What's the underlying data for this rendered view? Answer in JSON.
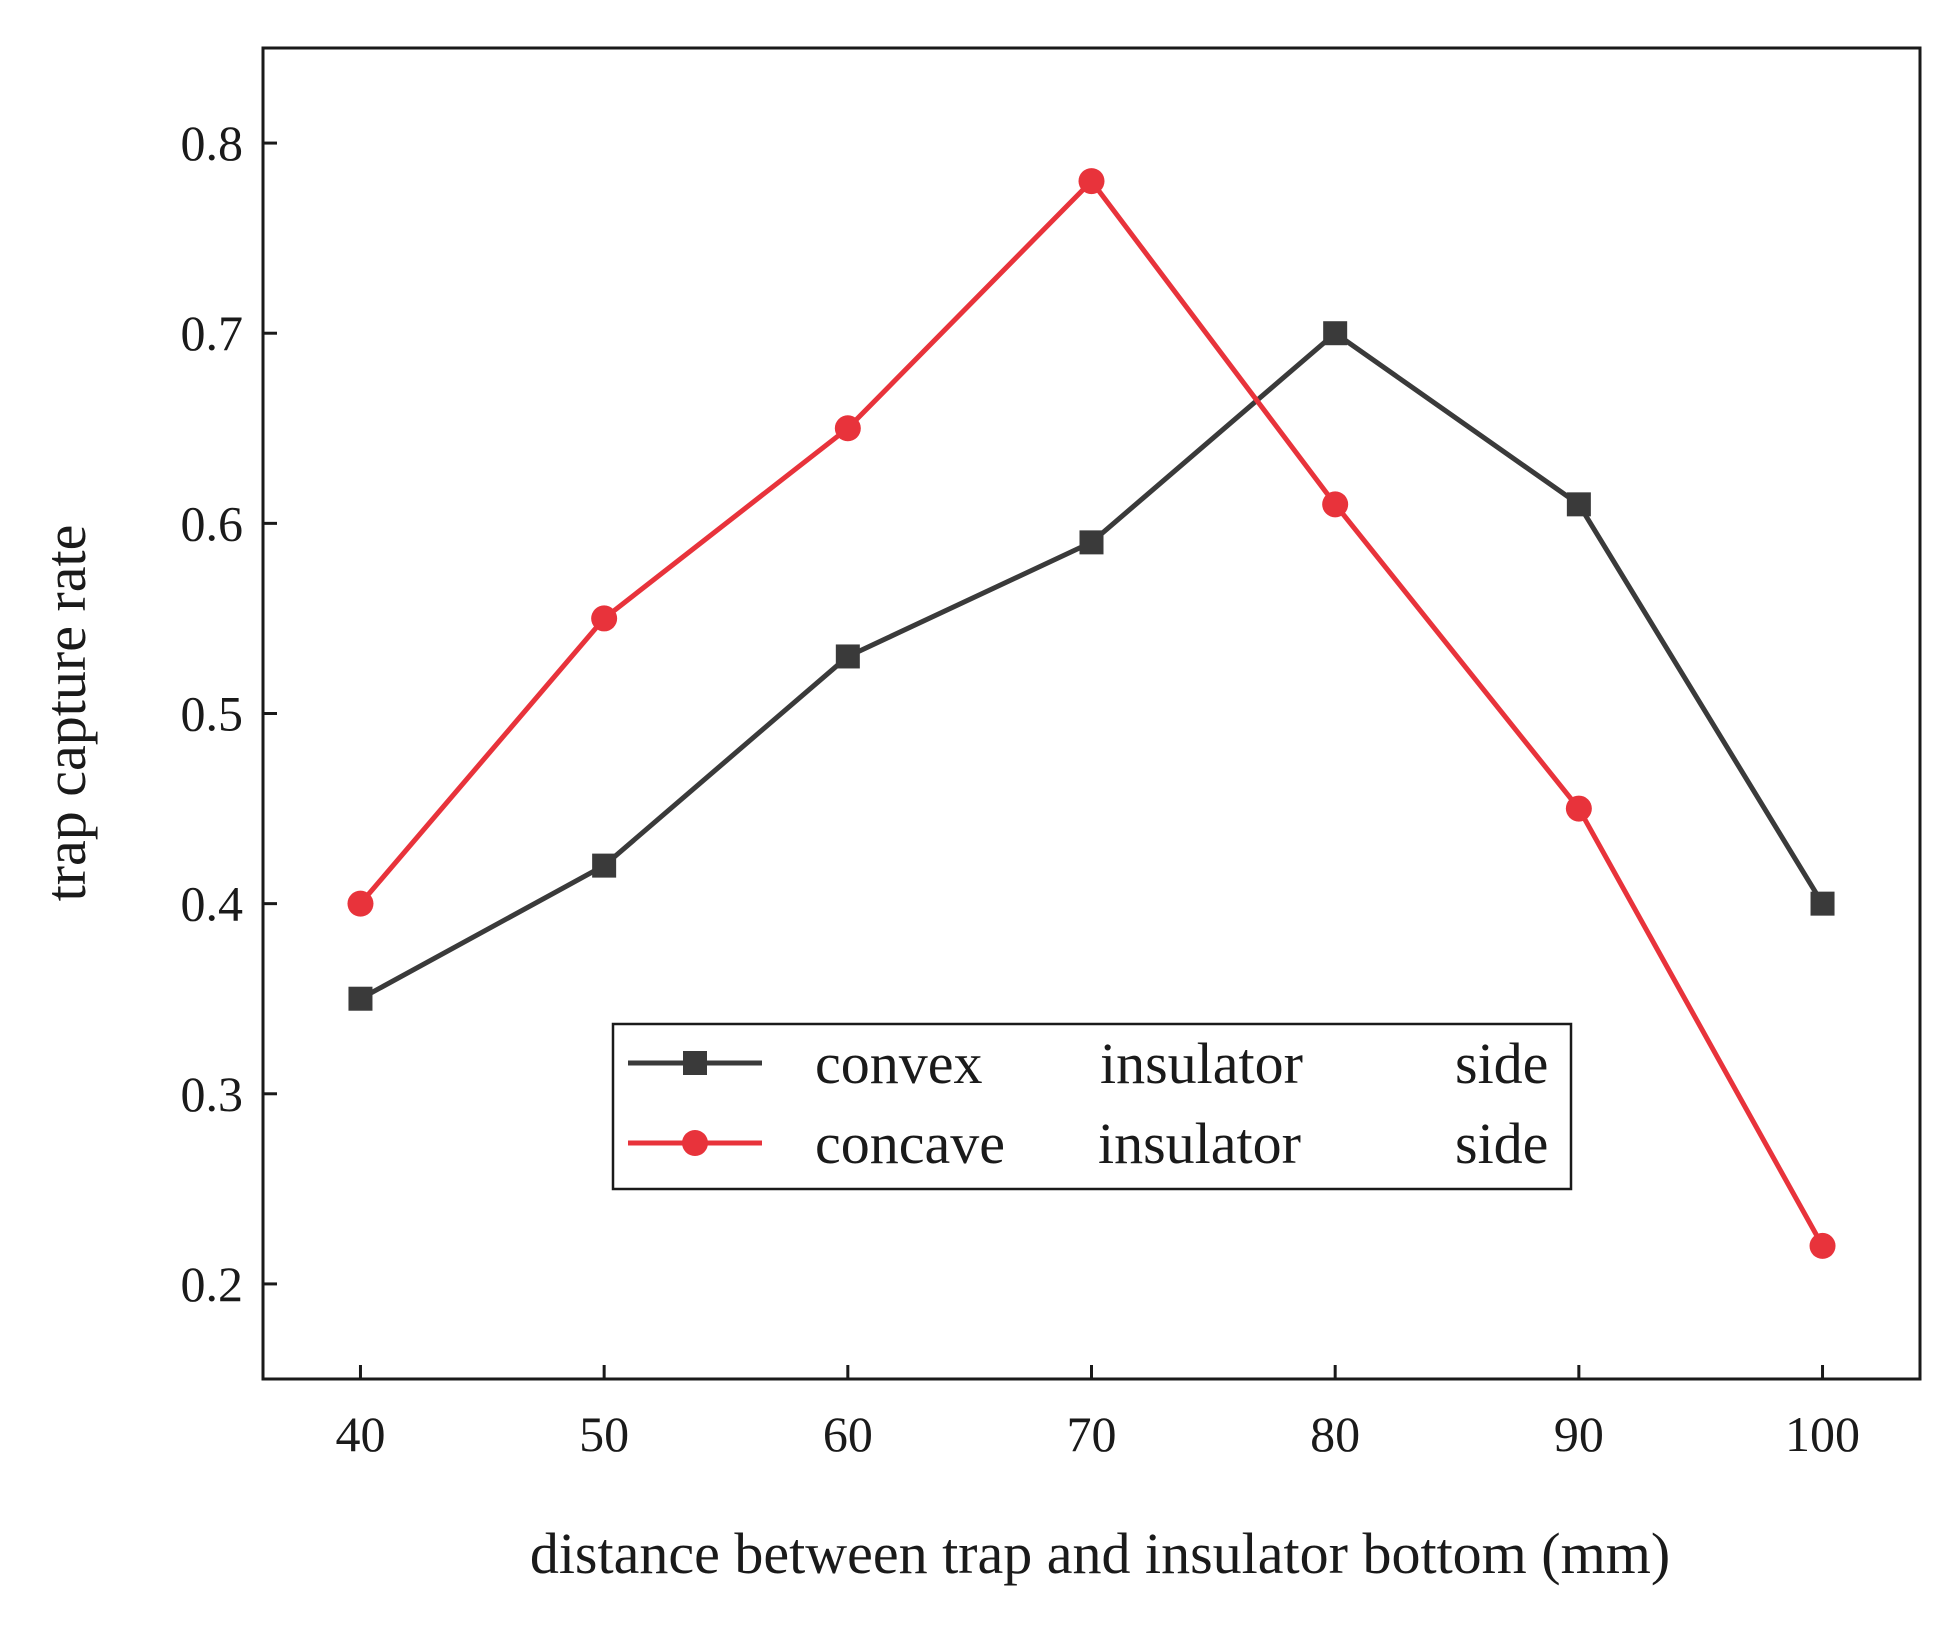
{
  "chart_data": {
    "type": "line",
    "title": "",
    "xlabel": "distance between trap and insulator bottom (mm)",
    "ylabel": "trap capture rate",
    "x": [
      40,
      50,
      60,
      70,
      80,
      90,
      100
    ],
    "x_ticks": [
      "40",
      "50",
      "60",
      "70",
      "80",
      "90",
      "100"
    ],
    "y_ticks": [
      "0.2",
      "0.3",
      "0.4",
      "0.5",
      "0.6",
      "0.7",
      "0.8"
    ],
    "xlim": [
      36,
      104
    ],
    "ylim": [
      0.15,
      0.85
    ],
    "grid": false,
    "legend_position": "lower-center",
    "series": [
      {
        "name": "convex insulator side",
        "legend_words": [
          "convex",
          "insulator",
          "side"
        ],
        "marker": "square",
        "color": "#3a3a3a",
        "values": [
          0.35,
          0.42,
          0.53,
          0.59,
          0.7,
          0.61,
          0.4
        ]
      },
      {
        "name": "concave insulator side",
        "legend_words": [
          "concave",
          "insulator",
          "side"
        ],
        "marker": "circle",
        "color": "#e8333b",
        "values": [
          0.4,
          0.55,
          0.65,
          0.78,
          0.61,
          0.45,
          0.22
        ]
      }
    ]
  }
}
